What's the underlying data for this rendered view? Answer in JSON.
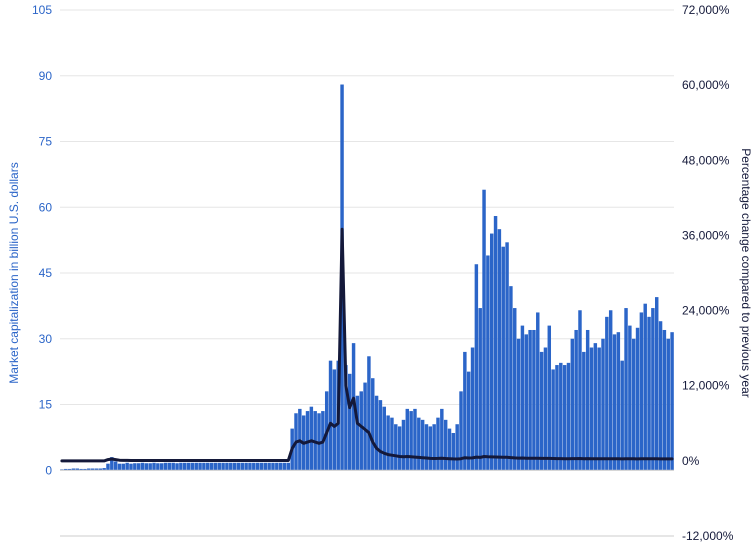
{
  "chart": {
    "type": "combo-bar-line",
    "background_color": "#ffffff",
    "plot_background_color": "#ffffff",
    "grid_color": "#e6e6e6",
    "axis_line_color": "#cccccc",
    "baseline_color": "#cccccc",
    "left_axis": {
      "label": "Market capitalization in billion U.S. dollars",
      "label_color": "#2b65c8",
      "label_fontsize": 12,
      "tick_color": "#2b65c8",
      "tick_fontsize": 12,
      "min": -15,
      "max": 105,
      "ticks": [
        0,
        15,
        30,
        45,
        60,
        75,
        90,
        105
      ]
    },
    "right_axis": {
      "label": "Percentage change compared to previous year",
      "label_color": "#14193a",
      "label_fontsize": 12,
      "tick_color": "#14193a",
      "tick_fontsize": 12,
      "min": -12000,
      "max": 72000,
      "ticks": [
        -12000,
        0,
        12000,
        24000,
        36000,
        48000,
        60000,
        72000
      ],
      "suffix": "%"
    },
    "bar_series": {
      "color": "#2b65c8",
      "bar_width_ratio": 0.9,
      "values": [
        0.2,
        0.3,
        0.3,
        0.4,
        0.4,
        0.3,
        0.3,
        0.4,
        0.4,
        0.4,
        0.4,
        0.5,
        1.5,
        3.0,
        2.0,
        1.5,
        1.5,
        1.7,
        1.5,
        1.6,
        1.6,
        1.7,
        1.6,
        1.6,
        1.7,
        1.6,
        1.6,
        1.7,
        1.7,
        1.7,
        1.6,
        1.7,
        1.7,
        1.7,
        1.7,
        1.7,
        1.7,
        1.7,
        1.7,
        1.7,
        1.7,
        1.7,
        1.7,
        1.7,
        1.7,
        1.7,
        1.7,
        1.7,
        1.7,
        1.7,
        1.7,
        1.7,
        1.7,
        1.7,
        1.7,
        1.7,
        1.7,
        1.7,
        1.7,
        1.7,
        9.5,
        13.0,
        14.0,
        12.5,
        13.5,
        14.5,
        13.5,
        13.0,
        13.5,
        18.0,
        25.0,
        23.0,
        25.0,
        88.0,
        24.0,
        22.0,
        29.0,
        17.0,
        18.0,
        20.0,
        26.0,
        21.0,
        17.0,
        16.0,
        14.5,
        12.5,
        12.0,
        10.5,
        10.0,
        11.5,
        14.0,
        13.5,
        14.0,
        12.0,
        11.5,
        10.5,
        10.0,
        10.5,
        12.0,
        14.0,
        11.5,
        9.5,
        8.5,
        10.5,
        18.0,
        27.0,
        22.5,
        28.0,
        47.0,
        37.0,
        64.0,
        49.0,
        54.0,
        58.0,
        55.0,
        51.0,
        52.0,
        42.0,
        37.0,
        30.0,
        33.0,
        31.0,
        32.0,
        32.0,
        36.0,
        27.0,
        28.0,
        33.0,
        23.0,
        24.0,
        24.5,
        24.0,
        24.5,
        30.0,
        32.0,
        36.5,
        27.0,
        32.0,
        28.0,
        29.0,
        28.0,
        30.0,
        35.0,
        36.5,
        31.0,
        31.5,
        25.0,
        37.0,
        33.0,
        30.0,
        32.5,
        36.0,
        38.0,
        35.0,
        37.0,
        39.5,
        34.0,
        32.0,
        30.0,
        31.5
      ]
    },
    "line_series": {
      "color": "#14193a",
      "line_width": 3,
      "values": [
        0,
        0,
        0,
        0,
        0,
        0,
        0,
        0,
        0,
        0,
        0,
        0,
        200,
        300,
        200,
        100,
        80,
        70,
        60,
        50,
        50,
        50,
        50,
        50,
        50,
        50,
        50,
        50,
        50,
        50,
        50,
        50,
        50,
        50,
        50,
        50,
        50,
        50,
        50,
        50,
        50,
        50,
        50,
        50,
        50,
        50,
        50,
        50,
        50,
        50,
        50,
        50,
        50,
        50,
        50,
        50,
        50,
        50,
        50,
        50,
        2000,
        3000,
        3200,
        2800,
        3000,
        3200,
        3000,
        2800,
        3000,
        4500,
        6000,
        5500,
        6000,
        37000,
        12000,
        8500,
        10000,
        6000,
        5500,
        5000,
        4500,
        3000,
        2000,
        1500,
        1200,
        1000,
        900,
        800,
        700,
        650,
        700,
        650,
        600,
        550,
        500,
        450,
        400,
        380,
        400,
        420,
        380,
        350,
        320,
        300,
        350,
        500,
        450,
        480,
        600,
        550,
        700,
        650,
        630,
        620,
        600,
        580,
        570,
        520,
        480,
        440,
        450,
        430,
        420,
        410,
        430,
        400,
        390,
        400,
        370,
        360,
        355,
        350,
        345,
        360,
        365,
        370,
        350,
        355,
        340,
        335,
        330,
        335,
        340,
        345,
        335,
        330,
        320,
        345,
        330,
        325,
        320,
        325,
        330,
        325,
        325,
        330,
        320,
        315,
        310,
        312
      ]
    }
  }
}
